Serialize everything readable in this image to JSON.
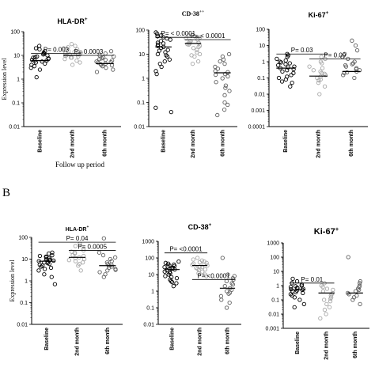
{
  "panel_label_b": "B",
  "follow_up_label": "Follow up period",
  "chart_data": [
    {
      "type": "scatter",
      "panel": "A",
      "title": "HLA-DR",
      "title_sup": "+",
      "ylabel": "Expression level",
      "log": true,
      "ylim": [
        0.01,
        100
      ],
      "yticks": [
        "100",
        "10",
        "1",
        "0.1",
        "0.01"
      ],
      "categories": [
        "Baseline",
        "2nd month",
        "6th month"
      ],
      "series": [
        {
          "values": [
            3,
            3.5,
            4,
            5,
            6,
            6.5,
            7,
            8,
            9,
            10,
            12,
            15,
            18,
            20,
            2.5,
            5.5,
            7.5,
            11,
            4.5,
            6,
            8.5,
            13,
            1.2,
            25
          ],
          "median": 6
        },
        {
          "values": [
            5,
            6,
            7,
            8,
            9,
            10,
            11,
            12,
            13,
            15,
            18,
            20,
            22,
            25,
            4,
            9.5,
            11,
            14,
            30,
            8
          ],
          "median": 10
        },
        {
          "values": [
            2,
            3,
            3.5,
            4,
            4.5,
            5,
            5.5,
            6,
            7,
            8,
            9,
            10,
            12,
            2.5,
            3.8,
            4.2,
            6.5,
            5.2,
            7.5,
            15
          ],
          "median": 4.5
        }
      ],
      "annotations": [
        {
          "text": "P= 0.003",
          "from": 0,
          "to": 1,
          "y": 12
        },
        {
          "text": "P= 0.0003",
          "from": 1,
          "to": 2,
          "y": 10
        }
      ]
    },
    {
      "type": "scatter",
      "panel": "A",
      "title": "CD-38",
      "title_sup": "++",
      "log": true,
      "ylim": [
        0.01,
        100
      ],
      "yticks": [
        "100",
        "10",
        "1",
        "0.1",
        "0.01"
      ],
      "categories": [
        "Baseline",
        "2nd month",
        "6th month"
      ],
      "series": [
        {
          "values": [
            0.04,
            0.06,
            3,
            4,
            5,
            6,
            8,
            10,
            12,
            15,
            18,
            20,
            22,
            25,
            28,
            30,
            35,
            40,
            45,
            50,
            55,
            60,
            70,
            80,
            2,
            9,
            14,
            1.5
          ],
          "median": 20
        },
        {
          "values": [
            5,
            8,
            10,
            12,
            15,
            18,
            20,
            22,
            25,
            28,
            30,
            35,
            40,
            45,
            50,
            55,
            60,
            4,
            9,
            26,
            33
          ],
          "median": 28
        },
        {
          "values": [
            0.03,
            0.05,
            0.08,
            0.1,
            0.2,
            0.3,
            0.5,
            0.7,
            1,
            1.2,
            1.5,
            1.8,
            2,
            2.5,
            3,
            4,
            5,
            6,
            8,
            10,
            0.4,
            1.4
          ],
          "median": 1.7
        }
      ],
      "annotations": [
        {
          "text": "P= < 0.0001",
          "from": 0,
          "to": 1,
          "y": 50
        },
        {
          "text": "P= < 0.0001",
          "from": 1,
          "to": 2,
          "y": 40
        }
      ]
    },
    {
      "type": "scatter",
      "panel": "A",
      "title": "Ki-67",
      "title_sup": "+",
      "log": true,
      "ylim": [
        0.0001,
        100
      ],
      "yticks": [
        "100",
        "10",
        "1",
        "0.1",
        "0.01",
        "0.001",
        "0.0001"
      ],
      "categories": [
        "Baseline",
        "2nd month",
        "6th month"
      ],
      "series": [
        {
          "values": [
            0.03,
            0.05,
            0.08,
            0.1,
            0.15,
            0.2,
            0.3,
            0.4,
            0.5,
            0.6,
            0.8,
            1,
            1.2,
            1.5,
            2,
            2.5,
            3,
            0.25,
            0.35,
            0.7,
            0.12,
            0.45,
            0.9,
            0.06
          ],
          "median": 0.4
        },
        {
          "values": [
            0.01,
            0.03,
            0.05,
            0.08,
            0.1,
            0.12,
            0.15,
            0.2,
            0.3,
            0.5,
            0.8,
            1,
            1.5,
            2,
            0.07,
            0.25,
            0.4,
            0.18
          ],
          "median": 0.13
        },
        {
          "values": [
            0.1,
            0.15,
            0.2,
            0.25,
            0.3,
            0.4,
            0.5,
            0.6,
            0.8,
            1,
            1.5,
            2,
            3,
            5,
            10,
            20,
            0.22,
            0.35,
            0.7
          ],
          "median": 0.25
        }
      ],
      "annotations": [
        {
          "text": "P= 0.03",
          "from": 0,
          "to": 1,
          "y": 3
        },
        {
          "text": "P= 0.09",
          "from": 1,
          "to": 2,
          "y": 1.5
        }
      ]
    },
    {
      "type": "scatter",
      "panel": "B",
      "title": "HLA-DR",
      "title_sup": "+",
      "ylabel": "Expression level",
      "log": true,
      "ylim": [
        0.01,
        100
      ],
      "yticks": [
        "100",
        "10",
        "1",
        "0.1",
        "0.01"
      ],
      "categories": [
        "Baseline",
        "2nd month",
        "6th month"
      ],
      "series": [
        {
          "values": [
            0.7,
            2,
            3,
            4,
            5,
            6,
            7,
            8,
            9,
            10,
            11,
            12,
            14,
            15,
            18,
            20,
            3.5,
            5.5,
            7.5,
            9.5,
            6.5,
            8.5,
            13,
            1.5,
            4.5
          ],
          "median": 8
        },
        {
          "values": [
            3,
            5,
            6,
            7,
            8,
            10,
            12,
            15,
            18,
            20,
            25,
            30,
            40,
            50,
            9,
            11,
            14,
            22
          ],
          "median": 12
        },
        {
          "values": [
            1.5,
            2,
            2.5,
            3,
            3.5,
            4,
            5,
            6,
            7,
            8,
            10,
            12,
            15,
            20,
            90,
            4.5,
            5.5,
            3.2
          ],
          "median": 5
        }
      ],
      "annotations": [
        {
          "text": "P= 0.04",
          "from": 0,
          "to": 2,
          "y": 60
        },
        {
          "text": "P= 0.0005",
          "from": 1,
          "to": 2,
          "y": 25
        }
      ]
    },
    {
      "type": "scatter",
      "panel": "B",
      "title": "CD-38",
      "title_sup": "+",
      "log": true,
      "ylim": [
        0.01,
        1000
      ],
      "yticks": [
        "1000",
        "100",
        "10",
        "1",
        "0.1",
        "0.01"
      ],
      "categories": [
        "Baseline",
        "2nd month",
        "6th month"
      ],
      "series": [
        {
          "values": [
            2,
            3,
            4,
            5,
            6,
            8,
            10,
            12,
            15,
            18,
            20,
            22,
            25,
            28,
            30,
            35,
            40,
            45,
            50,
            60,
            7,
            14,
            24,
            33,
            3.5
          ],
          "median": 20
        },
        {
          "values": [
            8,
            10,
            12,
            15,
            18,
            20,
            25,
            30,
            35,
            40,
            45,
            50,
            60,
            70,
            80,
            100,
            22,
            28,
            38,
            55
          ],
          "median": 35
        },
        {
          "values": [
            0.1,
            0.2,
            0.3,
            0.5,
            0.7,
            1,
            1.2,
            1.5,
            2,
            3,
            4,
            5,
            6,
            8,
            10,
            100,
            0.8,
            2.5
          ],
          "median": 1.5
        }
      ],
      "annotations": [
        {
          "text": "P= <0.0001",
          "from": 0,
          "to": 1,
          "y": 200
        },
        {
          "text": "P= <0.0001",
          "from": 1,
          "to": 2,
          "y": 5
        }
      ]
    },
    {
      "type": "scatter",
      "panel": "B",
      "title": "Ki-67",
      "title_sup": "+",
      "log": true,
      "ylim": [
        0.001,
        1000
      ],
      "yticks": [
        "1000",
        "100",
        "10",
        "1",
        "0.1",
        "0.01",
        "0.001"
      ],
      "categories": [
        "Baseline",
        "2nd month",
        "6th month"
      ],
      "series": [
        {
          "values": [
            0.03,
            0.05,
            0.1,
            0.15,
            0.2,
            0.3,
            0.4,
            0.5,
            0.6,
            0.8,
            1,
            1.2,
            1.5,
            2,
            3,
            0.25,
            0.35,
            0.45,
            0.7,
            0.9,
            0.55,
            0.65
          ],
          "median": 0.5
        },
        {
          "values": [
            0.005,
            0.01,
            0.02,
            0.05,
            0.08,
            0.1,
            0.15,
            0.2,
            0.3,
            0.4,
            0.5,
            0.8,
            1,
            1.5,
            0.25,
            0.12,
            0.6,
            0.03
          ],
          "median": 0.3
        },
        {
          "values": [
            0.05,
            0.1,
            0.15,
            0.2,
            0.3,
            0.5,
            0.8,
            1,
            1.5,
            2,
            100,
            0.4,
            0.6,
            0.25
          ],
          "median": 0.3
        }
      ],
      "annotations": [
        {
          "text": "P= 0.01",
          "from": 0,
          "to": 1,
          "y": 1.5
        }
      ]
    }
  ]
}
